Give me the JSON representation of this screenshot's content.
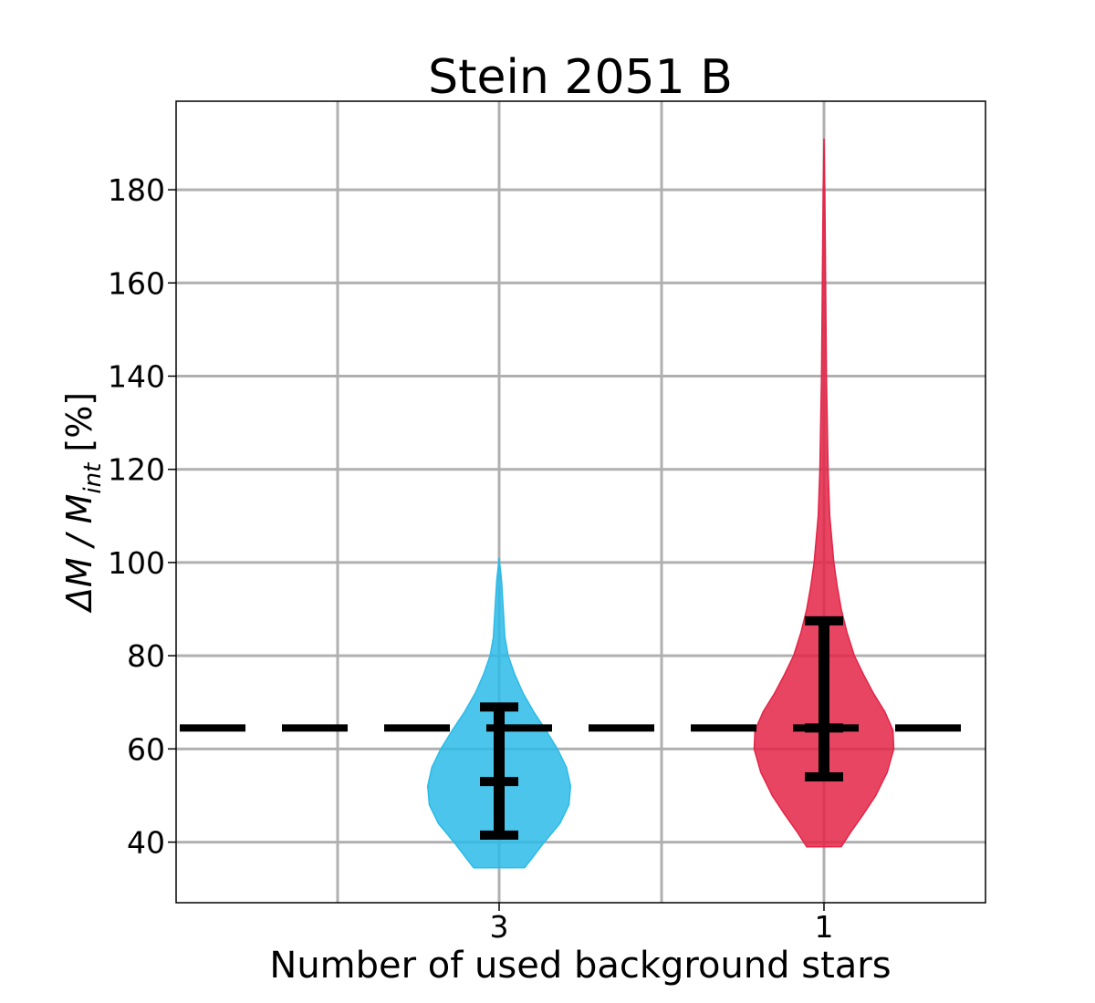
{
  "chart_data": {
    "type": "violin",
    "title": "Stein 2051 B",
    "xlabel": "Number of used background stars",
    "ylabel": {
      "prefix": "ΔM / M",
      "subscript": "int",
      "suffix": " [%]"
    },
    "ylim": [
      27,
      199
    ],
    "yticks": [
      40,
      60,
      80,
      100,
      120,
      140,
      160,
      180
    ],
    "grid": true,
    "reference_line": {
      "value": 64.5,
      "style": "dashed",
      "color": "#000000"
    },
    "categories": [
      "3",
      "1"
    ],
    "violins": [
      {
        "category": "3",
        "color": "#2bbbe8",
        "min": 34.5,
        "max": 101,
        "error_low": 41.5,
        "median": 53,
        "error_high": 69,
        "density": [
          [
            34.5,
            0.31
          ],
          [
            37,
            0.42
          ],
          [
            40,
            0.55
          ],
          [
            44,
            0.74
          ],
          [
            48,
            0.85
          ],
          [
            52,
            0.87
          ],
          [
            56,
            0.82
          ],
          [
            60,
            0.71
          ],
          [
            64,
            0.57
          ],
          [
            68,
            0.42
          ],
          [
            72,
            0.29
          ],
          [
            76,
            0.19
          ],
          [
            80,
            0.11
          ],
          [
            84,
            0.07
          ],
          [
            90,
            0.05
          ],
          [
            96,
            0.03
          ],
          [
            101,
            0.0
          ]
        ]
      },
      {
        "category": "1",
        "color": "#e32447",
        "min": 39,
        "max": 191,
        "error_low": 54,
        "median": 64.5,
        "error_high": 87.5,
        "density": [
          [
            39,
            0.21
          ],
          [
            42,
            0.32
          ],
          [
            46,
            0.48
          ],
          [
            50,
            0.63
          ],
          [
            55,
            0.77
          ],
          [
            60,
            0.85
          ],
          [
            64,
            0.84
          ],
          [
            68,
            0.74
          ],
          [
            72,
            0.6
          ],
          [
            76,
            0.48
          ],
          [
            80,
            0.37
          ],
          [
            85,
            0.28
          ],
          [
            90,
            0.21
          ],
          [
            95,
            0.16
          ],
          [
            100,
            0.12
          ],
          [
            110,
            0.07
          ],
          [
            120,
            0.05
          ],
          [
            140,
            0.03
          ],
          [
            160,
            0.02
          ],
          [
            180,
            0.01
          ],
          [
            191,
            0.0
          ]
        ]
      }
    ]
  }
}
